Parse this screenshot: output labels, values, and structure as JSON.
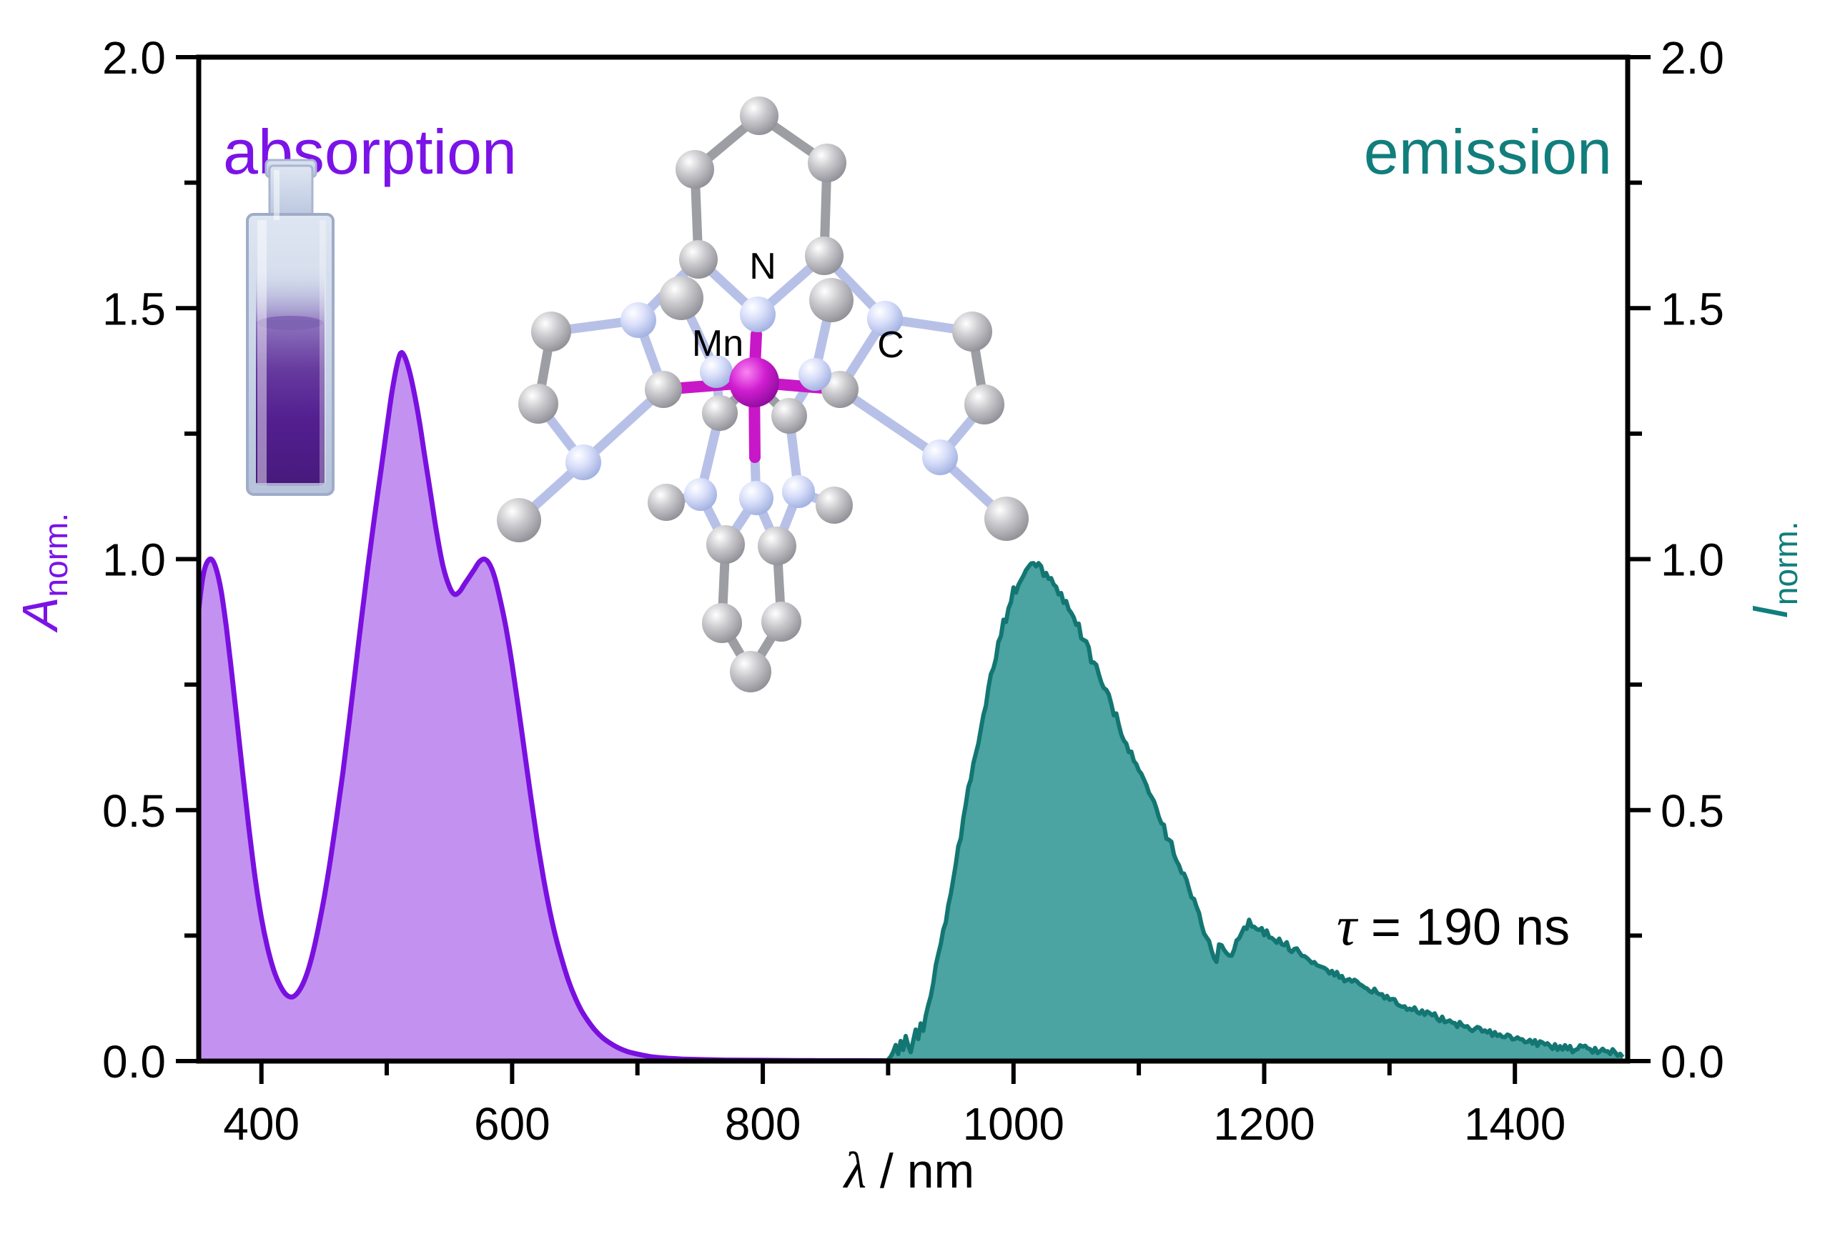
{
  "figure": {
    "absorption_label": "absorption",
    "emission_label": "emission",
    "lifetime": {
      "symbol": "τ",
      "rest": " = 190 ns",
      "full": "τ = 190 ns"
    },
    "xlabel": {
      "symbol": "λ",
      "rest": " / nm",
      "full": "λ / nm"
    },
    "left_axis_label": {
      "symbol": "A",
      "subscript": "norm."
    },
    "right_axis_label": {
      "symbol": "I",
      "subscript": "norm."
    },
    "molecule_labels": {
      "nitrogen": "N",
      "manganese": "Mn",
      "carbon": "C"
    }
  },
  "colors": {
    "absorption_text": "#7b13e8",
    "absorption_stroke": "#7a10e0",
    "absorption_fill": "#c392f0",
    "emission_text": "#117e7c",
    "emission_stroke": "#137672",
    "emission_fill": "#4ba4a1",
    "axis": "#000000",
    "mn_magenta": "#c717c7"
  },
  "chart_data": {
    "type": "area",
    "title": "",
    "xlabel": "λ / nm",
    "ylabel_left": "A_norm.",
    "ylabel_right": "I_norm.",
    "xlim": [
      350,
      1490
    ],
    "ylim": [
      0,
      2
    ],
    "grid": false,
    "legend_position": "none",
    "x_major_ticks": [
      400,
      600,
      800,
      1000,
      1200,
      1400
    ],
    "x_major_tick_labels": [
      "400",
      "600",
      "800",
      "1000",
      "1200",
      "1400"
    ],
    "x_minor_ticks": [
      500,
      700,
      900,
      1100,
      1300
    ],
    "y_major_ticks": [
      0,
      0.5,
      1.0,
      1.5,
      2.0
    ],
    "y_major_tick_labels": [
      "0.0",
      "0.5",
      "1.0",
      "1.5",
      "2.0"
    ],
    "y_minor_ticks": [
      0.25,
      0.75,
      1.25,
      1.75
    ],
    "annotations": [
      {
        "text": "τ = 190 ns",
        "lambda_nm": 1300,
        "value": 0.26
      }
    ],
    "series": [
      {
        "name": "absorption",
        "axis": "left",
        "style": "smooth",
        "peak_maxima_nm": [
          360,
          510,
          578
        ],
        "peak_values": [
          1.0,
          1.41,
          1.0
        ],
        "points": [
          [
            350,
            0.9
          ],
          [
            353,
            0.96
          ],
          [
            356,
            0.99
          ],
          [
            360,
            1.0
          ],
          [
            364,
            0.98
          ],
          [
            368,
            0.935
          ],
          [
            372,
            0.865
          ],
          [
            376,
            0.78
          ],
          [
            380,
            0.69
          ],
          [
            385,
            0.575
          ],
          [
            390,
            0.465
          ],
          [
            395,
            0.365
          ],
          [
            400,
            0.285
          ],
          [
            405,
            0.225
          ],
          [
            410,
            0.18
          ],
          [
            415,
            0.15
          ],
          [
            420,
            0.132
          ],
          [
            425,
            0.128
          ],
          [
            430,
            0.14
          ],
          [
            435,
            0.165
          ],
          [
            440,
            0.205
          ],
          [
            445,
            0.26
          ],
          [
            450,
            0.325
          ],
          [
            455,
            0.4
          ],
          [
            460,
            0.485
          ],
          [
            465,
            0.575
          ],
          [
            470,
            0.675
          ],
          [
            475,
            0.78
          ],
          [
            480,
            0.885
          ],
          [
            485,
            0.985
          ],
          [
            490,
            1.08
          ],
          [
            495,
            1.17
          ],
          [
            500,
            1.26
          ],
          [
            504,
            1.33
          ],
          [
            508,
            1.385
          ],
          [
            511,
            1.41
          ],
          [
            514,
            1.405
          ],
          [
            518,
            1.375
          ],
          [
            522,
            1.33
          ],
          [
            526,
            1.275
          ],
          [
            530,
            1.21
          ],
          [
            535,
            1.13
          ],
          [
            540,
            1.05
          ],
          [
            545,
            0.985
          ],
          [
            550,
            0.945
          ],
          [
            554,
            0.93
          ],
          [
            558,
            0.935
          ],
          [
            562,
            0.95
          ],
          [
            566,
            0.965
          ],
          [
            570,
            0.98
          ],
          [
            574,
            0.995
          ],
          [
            578,
            1.0
          ],
          [
            582,
            0.99
          ],
          [
            586,
            0.965
          ],
          [
            590,
            0.925
          ],
          [
            595,
            0.865
          ],
          [
            600,
            0.79
          ],
          [
            605,
            0.705
          ],
          [
            610,
            0.615
          ],
          [
            615,
            0.525
          ],
          [
            620,
            0.44
          ],
          [
            625,
            0.365
          ],
          [
            630,
            0.3
          ],
          [
            635,
            0.245
          ],
          [
            640,
            0.2
          ],
          [
            645,
            0.16
          ],
          [
            650,
            0.128
          ],
          [
            655,
            0.102
          ],
          [
            660,
            0.082
          ],
          [
            666,
            0.062
          ],
          [
            672,
            0.047
          ],
          [
            678,
            0.036
          ],
          [
            685,
            0.026
          ],
          [
            692,
            0.019
          ],
          [
            700,
            0.014
          ],
          [
            710,
            0.009
          ],
          [
            722,
            0.006
          ],
          [
            736,
            0.004
          ],
          [
            752,
            0.003
          ],
          [
            770,
            0.002
          ],
          [
            800,
            0.0015
          ],
          [
            840,
            0.001
          ],
          [
            880,
            0.0008
          ],
          [
            905,
            0.0006
          ]
        ]
      },
      {
        "name": "emission",
        "axis": "right",
        "style": "noisy",
        "noise_amplitude": 0.012,
        "peak_maximum_nm": 1014,
        "peak_value": 1.0,
        "points": [
          [
            898,
            0.0
          ],
          [
            901,
            0.004
          ],
          [
            904,
            0.018
          ],
          [
            906,
            0.032
          ],
          [
            908,
            0.014
          ],
          [
            910,
            0.04
          ],
          [
            912,
            0.022
          ],
          [
            914,
            0.05
          ],
          [
            916,
            0.03
          ],
          [
            918,
            0.016
          ],
          [
            920,
            0.04
          ],
          [
            922,
            0.06
          ],
          [
            924,
            0.045
          ],
          [
            926,
            0.08
          ],
          [
            928,
            0.06
          ],
          [
            930,
            0.09
          ],
          [
            933,
            0.12
          ],
          [
            936,
            0.16
          ],
          [
            939,
            0.2
          ],
          [
            942,
            0.235
          ],
          [
            945,
            0.27
          ],
          [
            948,
            0.305
          ],
          [
            951,
            0.345
          ],
          [
            954,
            0.39
          ],
          [
            957,
            0.435
          ],
          [
            960,
            0.48
          ],
          [
            963,
            0.525
          ],
          [
            966,
            0.565
          ],
          [
            969,
            0.6
          ],
          [
            972,
            0.64
          ],
          [
            975,
            0.675
          ],
          [
            978,
            0.715
          ],
          [
            981,
            0.75
          ],
          [
            984,
            0.785
          ],
          [
            987,
            0.82
          ],
          [
            990,
            0.85
          ],
          [
            993,
            0.875
          ],
          [
            996,
            0.9
          ],
          [
            999,
            0.925
          ],
          [
            1002,
            0.945
          ],
          [
            1005,
            0.96
          ],
          [
            1008,
            0.975
          ],
          [
            1011,
            0.99
          ],
          [
            1014,
            1.0
          ],
          [
            1017,
            0.995
          ],
          [
            1020,
            0.985
          ],
          [
            1023,
            0.975
          ],
          [
            1026,
            0.97
          ],
          [
            1029,
            0.955
          ],
          [
            1032,
            0.945
          ],
          [
            1036,
            0.93
          ],
          [
            1040,
            0.915
          ],
          [
            1044,
            0.9
          ],
          [
            1048,
            0.885
          ],
          [
            1052,
            0.865
          ],
          [
            1056,
            0.84
          ],
          [
            1060,
            0.815
          ],
          [
            1065,
            0.785
          ],
          [
            1070,
            0.755
          ],
          [
            1075,
            0.725
          ],
          [
            1080,
            0.695
          ],
          [
            1085,
            0.665
          ],
          [
            1090,
            0.635
          ],
          [
            1095,
            0.605
          ],
          [
            1100,
            0.578
          ],
          [
            1105,
            0.55
          ],
          [
            1110,
            0.52
          ],
          [
            1115,
            0.49
          ],
          [
            1120,
            0.462
          ],
          [
            1125,
            0.435
          ],
          [
            1130,
            0.405
          ],
          [
            1135,
            0.375
          ],
          [
            1140,
            0.345
          ],
          [
            1144,
            0.318
          ],
          [
            1148,
            0.29
          ],
          [
            1152,
            0.262
          ],
          [
            1156,
            0.235
          ],
          [
            1159,
            0.215
          ],
          [
            1162,
            0.205
          ],
          [
            1165,
            0.235
          ],
          [
            1168,
            0.222
          ],
          [
            1171,
            0.2
          ],
          [
            1174,
            0.212
          ],
          [
            1177,
            0.235
          ],
          [
            1180,
            0.252
          ],
          [
            1184,
            0.265
          ],
          [
            1188,
            0.275
          ],
          [
            1192,
            0.27
          ],
          [
            1196,
            0.262
          ],
          [
            1200,
            0.255
          ],
          [
            1206,
            0.247
          ],
          [
            1212,
            0.238
          ],
          [
            1218,
            0.23
          ],
          [
            1224,
            0.222
          ],
          [
            1230,
            0.213
          ],
          [
            1237,
            0.203
          ],
          [
            1244,
            0.193
          ],
          [
            1251,
            0.183
          ],
          [
            1258,
            0.173
          ],
          [
            1265,
            0.163
          ],
          [
            1272,
            0.155
          ],
          [
            1280,
            0.147
          ],
          [
            1288,
            0.138
          ],
          [
            1296,
            0.128
          ],
          [
            1304,
            0.119
          ],
          [
            1312,
            0.111
          ],
          [
            1320,
            0.103
          ],
          [
            1330,
            0.094
          ],
          [
            1340,
            0.085
          ],
          [
            1350,
            0.077
          ],
          [
            1360,
            0.07
          ],
          [
            1370,
            0.063
          ],
          [
            1380,
            0.056
          ],
          [
            1390,
            0.05
          ],
          [
            1400,
            0.045
          ],
          [
            1410,
            0.04
          ],
          [
            1420,
            0.035
          ],
          [
            1430,
            0.03
          ],
          [
            1440,
            0.026
          ],
          [
            1448,
            0.023
          ],
          [
            1456,
            0.028
          ],
          [
            1462,
            0.022
          ],
          [
            1468,
            0.018
          ],
          [
            1474,
            0.022
          ],
          [
            1480,
            0.016
          ],
          [
            1484,
            0.013
          ],
          [
            1487,
            0.012
          ]
        ]
      }
    ]
  }
}
